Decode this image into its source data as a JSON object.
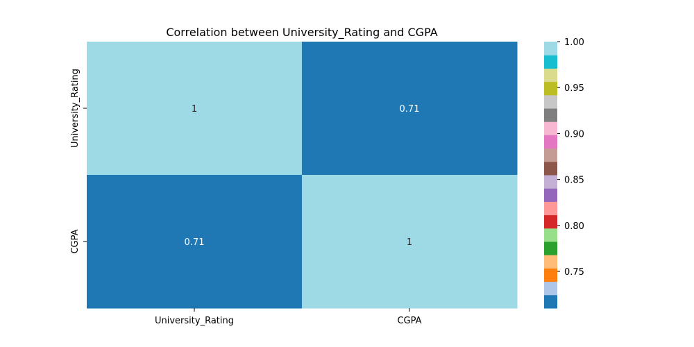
{
  "chart_data": {
    "type": "heatmap",
    "title": "Correlation between University_Rating and CGPA",
    "xlabel": "",
    "ylabel": "",
    "x_categories": [
      "University_Rating",
      "CGPA"
    ],
    "y_categories": [
      "University_Rating",
      "CGPA"
    ],
    "values": [
      [
        1.0,
        0.71
      ],
      [
        0.71,
        1.0
      ]
    ],
    "annotations": [
      [
        "1",
        "0.71"
      ],
      [
        "0.71",
        "1"
      ]
    ],
    "colormap": "tab20",
    "colormap_colors": [
      "#1f77b4",
      "#aec7e8",
      "#ff7f0e",
      "#ffbb78",
      "#2ca02c",
      "#98df8a",
      "#d62728",
      "#ff9896",
      "#9467bd",
      "#c5b0d5",
      "#8c564b",
      "#c49c94",
      "#e377c2",
      "#f7b6d2",
      "#7f7f7f",
      "#c7c7c7",
      "#bcbd22",
      "#dbdb8d",
      "#17becf",
      "#9edae5"
    ],
    "colorbar": {
      "vmin": 0.71,
      "vmax": 1.0,
      "ticks": [
        0.75,
        0.8,
        0.85,
        0.9,
        0.95,
        1.0
      ],
      "tick_labels": [
        "0.75",
        "0.80",
        "0.85",
        "0.90",
        "0.95",
        "1.00"
      ],
      "placement": "right"
    },
    "annotation_colors": {
      "light_cell": "#262626",
      "dark_cell": "#ffffff"
    }
  }
}
